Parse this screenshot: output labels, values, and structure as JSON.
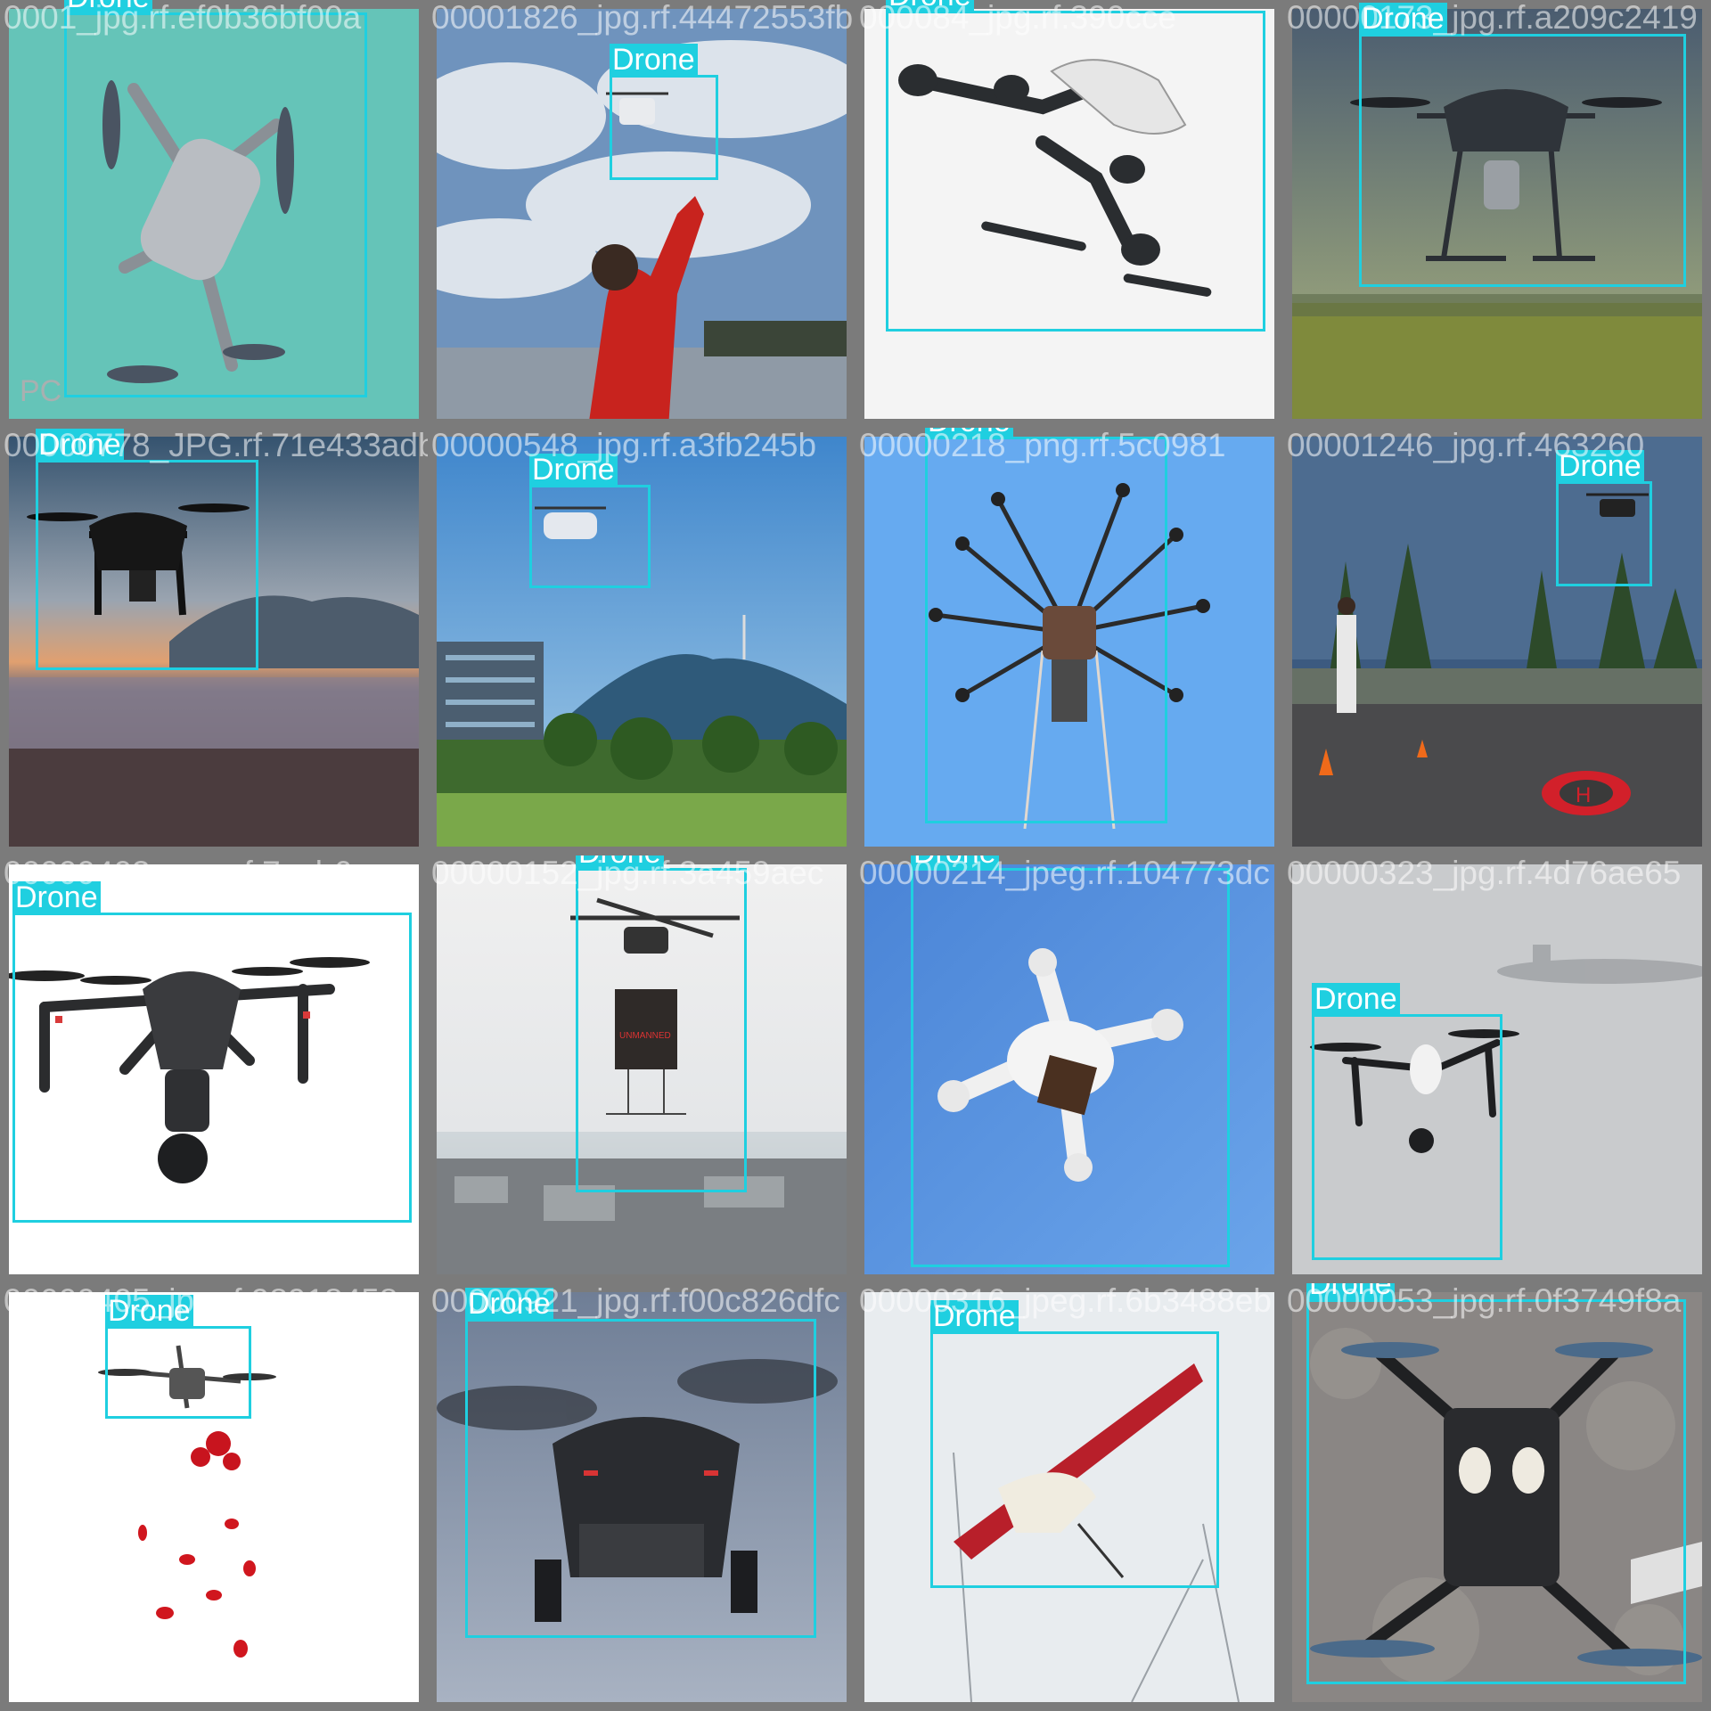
{
  "label_text": "Drone",
  "box_color": "#1fcfe0",
  "tiles": [
    {
      "filename": "0001_jpg.rf.ef0b36bf00a",
      "scene": "teal-studio-quadcopter"
    },
    {
      "filename": "00001826_jpg.rf.44472553fb",
      "scene": "sky-hand-launch"
    },
    {
      "filename": "000084_jpg.rf.390cce",
      "scene": "white-studio-drone"
    },
    {
      "filename": "00000173_jpg.rf.a209c2419",
      "scene": "field-hover-drone"
    },
    {
      "filename": "00000778_JPG.rf.71e433adb",
      "scene": "sunset-beach-drone"
    },
    {
      "filename": "00000548_jpg.rf.a3fb245b",
      "scene": "city-mountain-drone"
    },
    {
      "filename": "00000218_png.rf.5c0981",
      "scene": "octocopter-blue-sky"
    },
    {
      "filename": "00001246_jpg.rf.463260",
      "scene": "rooftop-helipad"
    },
    {
      "filename": "00000403_png.rf.7ceb6cee",
      "scene": "inspire-white"
    },
    {
      "filename": "00000152_jpg.rf.3a459aec",
      "scene": "delivery-box-hexacopter"
    },
    {
      "filename": "00000214_jpeg.rf.104773dc",
      "scene": "ups-drone-blue"
    },
    {
      "filename": "00000323_jpg.rf.4d76ae65",
      "scene": "grey-sky-plane"
    },
    {
      "filename": "00000405_jpg.rf.98918458",
      "scene": "flower-drop-drone"
    },
    {
      "filename": "00000921_jpg.rf.f00c826dfc",
      "scene": "close-blur-drone"
    },
    {
      "filename": "00000316_jpeg.rf.6b3488eb",
      "scene": "fixed-wing-red"
    },
    {
      "filename": "00000053_jpg.rf.0f3749f8a",
      "scene": "gravel-ground-drone"
    }
  ]
}
